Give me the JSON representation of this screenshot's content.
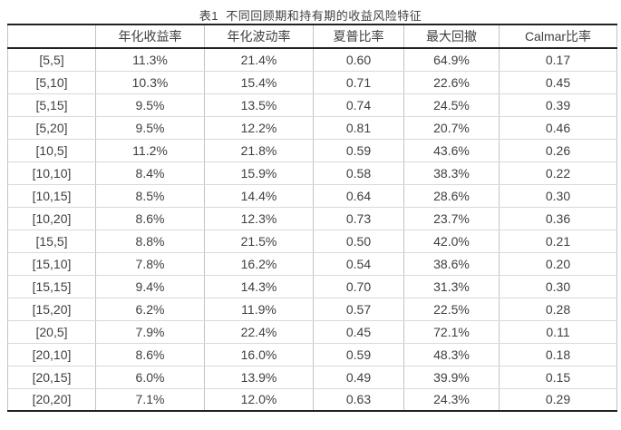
{
  "title": "表1  不同回顾期和持有期的收益风险特征",
  "table": {
    "columns": [
      "",
      "年化收益率",
      "年化波动率",
      "夏普比率",
      "最大回撤",
      "Calmar比率"
    ],
    "rows": [
      [
        "[5,5]",
        "11.3%",
        "21.4%",
        "0.60",
        "64.9%",
        "0.17"
      ],
      [
        "[5,10]",
        "10.3%",
        "15.4%",
        "0.71",
        "22.6%",
        "0.45"
      ],
      [
        "[5,15]",
        "9.5%",
        "13.5%",
        "0.74",
        "24.5%",
        "0.39"
      ],
      [
        "[5,20]",
        "9.5%",
        "12.2%",
        "0.81",
        "20.7%",
        "0.46"
      ],
      [
        "[10,5]",
        "11.2%",
        "21.8%",
        "0.59",
        "43.6%",
        "0.26"
      ],
      [
        "[10,10]",
        "8.4%",
        "15.9%",
        "0.58",
        "38.3%",
        "0.22"
      ],
      [
        "[10,15]",
        "8.5%",
        "14.4%",
        "0.64",
        "28.6%",
        "0.30"
      ],
      [
        "[10,20]",
        "8.6%",
        "12.3%",
        "0.73",
        "23.7%",
        "0.36"
      ],
      [
        "[15,5]",
        "8.8%",
        "21.5%",
        "0.50",
        "42.0%",
        "0.21"
      ],
      [
        "[15,10]",
        "7.8%",
        "16.2%",
        "0.54",
        "38.6%",
        "0.20"
      ],
      [
        "[15,15]",
        "9.4%",
        "14.3%",
        "0.70",
        "31.3%",
        "0.30"
      ],
      [
        "[15,20]",
        "6.2%",
        "11.9%",
        "0.57",
        "22.5%",
        "0.28"
      ],
      [
        "[20,5]",
        "7.9%",
        "22.4%",
        "0.45",
        "72.1%",
        "0.11"
      ],
      [
        "[20,10]",
        "8.6%",
        "16.0%",
        "0.59",
        "48.3%",
        "0.18"
      ],
      [
        "[20,15]",
        "6.0%",
        "13.9%",
        "0.49",
        "39.9%",
        "0.15"
      ],
      [
        "[20,20]",
        "7.1%",
        "12.0%",
        "0.63",
        "24.3%",
        "0.29"
      ]
    ]
  },
  "colors": {
    "text": "#3f3f3f",
    "dark_border": "#222222",
    "vertical_line": "#c3c3c3",
    "row_line": "#d9d9d9",
    "page_background": "#ffffff"
  }
}
